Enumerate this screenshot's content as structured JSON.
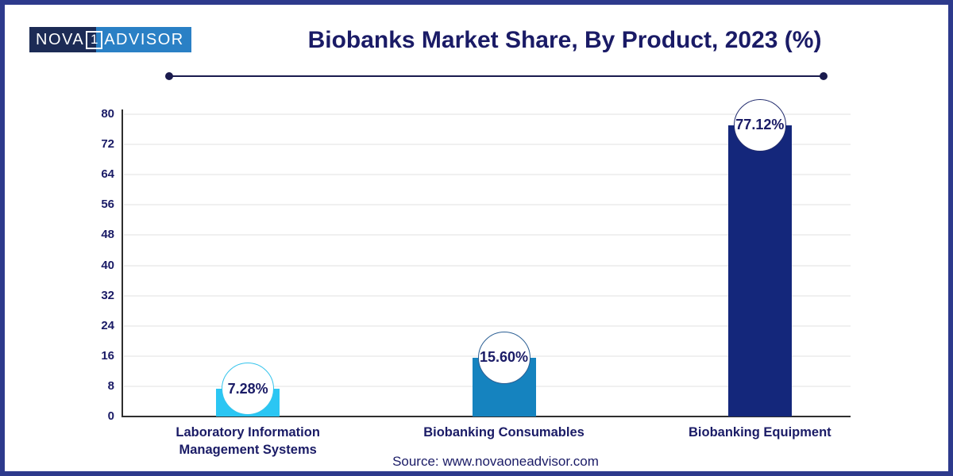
{
  "window": {
    "background": "#ffffff",
    "border_color": "#2d3a8c"
  },
  "logo": {
    "nova": "NOVA",
    "one": "1",
    "advisor": "ADVISOR",
    "dark_bg": "#1c2b55",
    "light_bg": "#2a80c5"
  },
  "header": {
    "title": "Biobanks Market Share, By Product, 2023 (%)",
    "title_color": "#1a1b66"
  },
  "chart_data": {
    "type": "bar",
    "title": "Biobanks Market Share, By Product, 2023 (%)",
    "categories": [
      "Laboratory Information Management Systems",
      "Biobanking Consumables",
      "Biobanking Equipment"
    ],
    "values": [
      7.28,
      15.6,
      77.12
    ],
    "data_labels": [
      "7.28%",
      "15.60%",
      "77.12%"
    ],
    "bar_colors": [
      "#2bc6f3",
      "#1583bf",
      "#14277b"
    ],
    "marker_border_colors": [
      "#35c4ec",
      "#2b5f94",
      "#222c6e"
    ],
    "ylim": [
      0,
      80
    ],
    "yticks": [
      0,
      8,
      16,
      24,
      32,
      40,
      48,
      56,
      64,
      72,
      80
    ],
    "grid": true,
    "legend": false,
    "xlabel": "",
    "ylabel": ""
  },
  "footer": {
    "source": "Source: www.novaoneadvisor.com"
  }
}
